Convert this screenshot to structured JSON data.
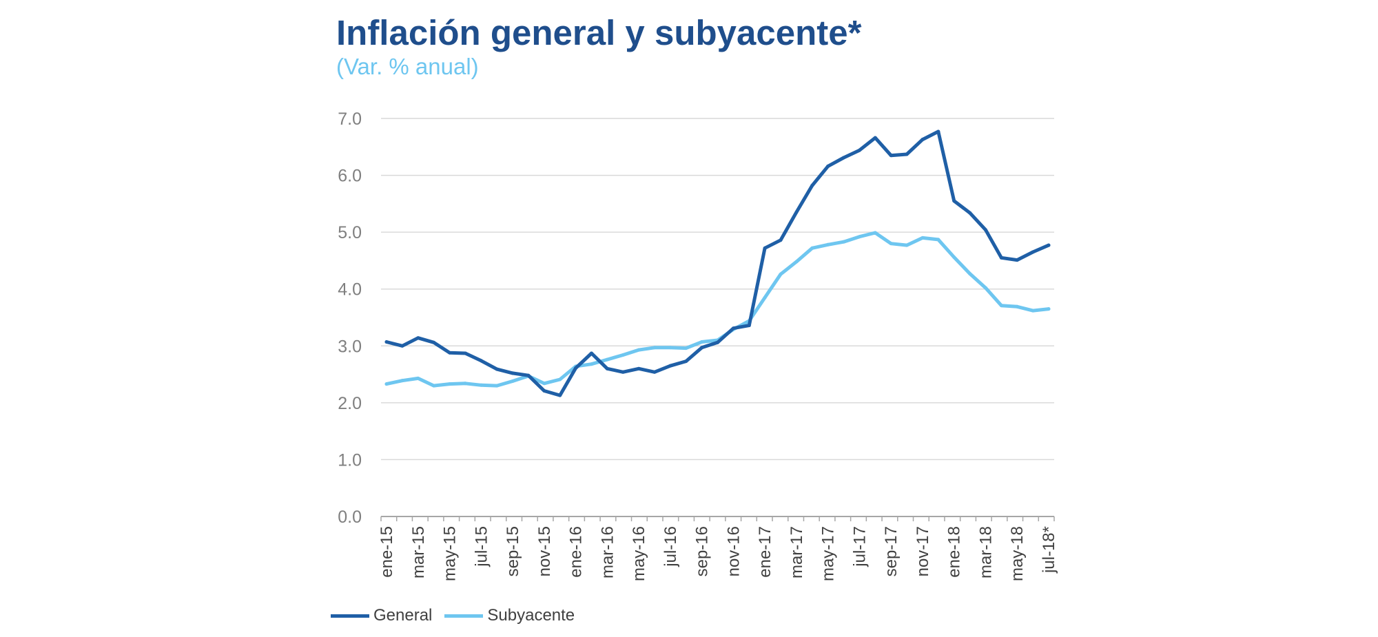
{
  "chart_data": {
    "type": "line",
    "title": "Inflación general y subyacente*",
    "subtitle": "(Var. % anual)",
    "xlabel": "",
    "ylabel": "",
    "ylim": [
      0,
      7
    ],
    "y_ticks": [
      "0.0",
      "1.0",
      "2.0",
      "3.0",
      "4.0",
      "5.0",
      "6.0",
      "7.0"
    ],
    "grid": true,
    "legend_position": "bottom-left",
    "x_tick_labels": [
      "ene-15",
      "mar-15",
      "may-15",
      "jul-15",
      "sep-15",
      "nov-15",
      "ene-16",
      "mar-16",
      "may-16",
      "jul-16",
      "sep-16",
      "nov-16",
      "ene-17",
      "mar-17",
      "may-17",
      "jul-17",
      "sep-17",
      "nov-17",
      "ene-18",
      "mar-18",
      "may-18",
      "jul-18*"
    ],
    "categories": [
      "ene-15",
      "feb-15",
      "mar-15",
      "abr-15",
      "may-15",
      "jun-15",
      "jul-15",
      "ago-15",
      "sep-15",
      "oct-15",
      "nov-15",
      "dic-15",
      "ene-16",
      "feb-16",
      "mar-16",
      "abr-16",
      "may-16",
      "jun-16",
      "jul-16",
      "ago-16",
      "sep-16",
      "oct-16",
      "nov-16",
      "dic-16",
      "ene-17",
      "feb-17",
      "mar-17",
      "abr-17",
      "may-17",
      "jun-17",
      "jul-17",
      "ago-17",
      "sep-17",
      "oct-17",
      "nov-17",
      "dic-17",
      "ene-18",
      "feb-18",
      "mar-18",
      "abr-18",
      "may-18",
      "jun-18",
      "jul-18*"
    ],
    "series": [
      {
        "name": "General",
        "color": "#1f5fa6",
        "values": [
          3.07,
          3.0,
          3.14,
          3.06,
          2.88,
          2.87,
          2.74,
          2.59,
          2.52,
          2.48,
          2.21,
          2.13,
          2.61,
          2.87,
          2.6,
          2.54,
          2.6,
          2.54,
          2.65,
          2.73,
          2.97,
          3.06,
          3.31,
          3.36,
          4.72,
          4.86,
          5.35,
          5.82,
          6.16,
          6.31,
          6.44,
          6.66,
          6.35,
          6.37,
          6.63,
          6.77,
          5.55,
          5.34,
          5.04,
          4.55,
          4.51,
          4.65,
          4.77
        ]
      },
      {
        "name": "Subyacente",
        "color": "#6ec6f0",
        "values": [
          2.33,
          2.39,
          2.43,
          2.3,
          2.33,
          2.34,
          2.31,
          2.3,
          2.38,
          2.47,
          2.34,
          2.41,
          2.64,
          2.68,
          2.76,
          2.84,
          2.93,
          2.97,
          2.97,
          2.96,
          3.07,
          3.1,
          3.29,
          3.44,
          3.85,
          4.26,
          4.48,
          4.72,
          4.78,
          4.83,
          4.92,
          4.99,
          4.8,
          4.77,
          4.9,
          4.87,
          4.56,
          4.27,
          4.02,
          3.71,
          3.69,
          3.62,
          3.65
        ]
      }
    ]
  }
}
